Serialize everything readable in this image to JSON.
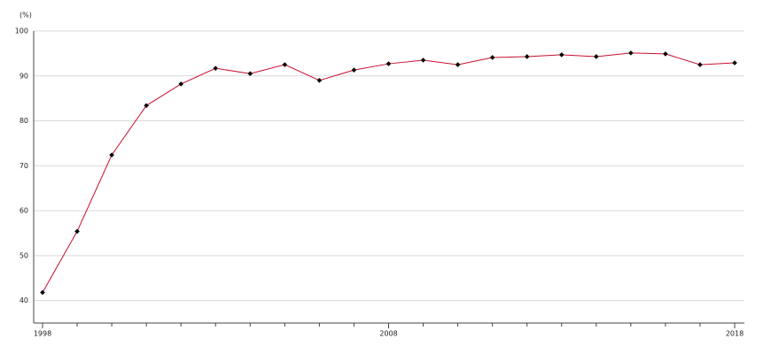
{
  "chart_data": {
    "type": "line",
    "y_label": "(%)",
    "x": [
      1998,
      1999,
      2000,
      2001,
      2002,
      2003,
      2004,
      2005,
      2006,
      2007,
      2008,
      2009,
      2010,
      2011,
      2012,
      2013,
      2014,
      2015,
      2016,
      2017,
      2018
    ],
    "series": [
      {
        "color": "#c8102e",
        "values": [
          41.8,
          55.4,
          72.4,
          83.4,
          88.2,
          91.7,
          90.5,
          92.5,
          89.0,
          91.3,
          92.7,
          93.5,
          92.5,
          94.1,
          94.3,
          94.7,
          94.3,
          95.1,
          94.9,
          92.5,
          92.9
        ]
      }
    ],
    "xlim": [
      1998,
      2018
    ],
    "xticks": [
      1998,
      2008,
      2018
    ],
    "ylim": [
      35,
      100
    ],
    "yticks": [
      40,
      50,
      60,
      70,
      80,
      90,
      100
    ],
    "grid": true
  }
}
